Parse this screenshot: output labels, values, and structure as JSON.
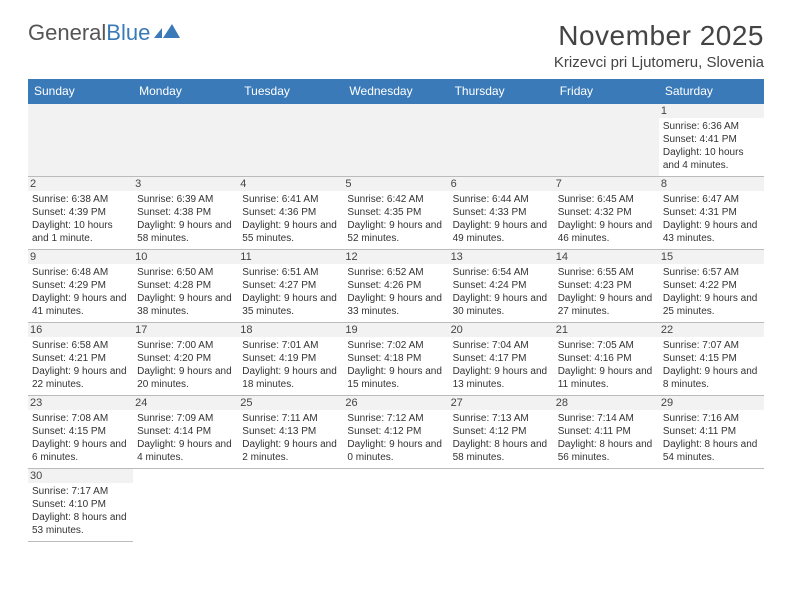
{
  "logo": {
    "text1": "General",
    "text2": "Blue"
  },
  "title": "November 2025",
  "location": "Krizevci pri Ljutomeru, Slovenia",
  "colors": {
    "header_bg": "#3a7ab8",
    "header_text": "#ffffff",
    "border": "#3a7ab8",
    "shade": "#f2f2f2",
    "text": "#333333"
  },
  "weekdays": [
    "Sunday",
    "Monday",
    "Tuesday",
    "Wednesday",
    "Thursday",
    "Friday",
    "Saturday"
  ],
  "weeks": [
    [
      null,
      null,
      null,
      null,
      null,
      null,
      {
        "day": "1",
        "sunrise": "6:36 AM",
        "sunset": "4:41 PM",
        "daylight": "10 hours and 4 minutes."
      }
    ],
    [
      {
        "day": "2",
        "sunrise": "6:38 AM",
        "sunset": "4:39 PM",
        "daylight": "10 hours and 1 minute."
      },
      {
        "day": "3",
        "sunrise": "6:39 AM",
        "sunset": "4:38 PM",
        "daylight": "9 hours and 58 minutes."
      },
      {
        "day": "4",
        "sunrise": "6:41 AM",
        "sunset": "4:36 PM",
        "daylight": "9 hours and 55 minutes."
      },
      {
        "day": "5",
        "sunrise": "6:42 AM",
        "sunset": "4:35 PM",
        "daylight": "9 hours and 52 minutes."
      },
      {
        "day": "6",
        "sunrise": "6:44 AM",
        "sunset": "4:33 PM",
        "daylight": "9 hours and 49 minutes."
      },
      {
        "day": "7",
        "sunrise": "6:45 AM",
        "sunset": "4:32 PM",
        "daylight": "9 hours and 46 minutes."
      },
      {
        "day": "8",
        "sunrise": "6:47 AM",
        "sunset": "4:31 PM",
        "daylight": "9 hours and 43 minutes."
      }
    ],
    [
      {
        "day": "9",
        "sunrise": "6:48 AM",
        "sunset": "4:29 PM",
        "daylight": "9 hours and 41 minutes."
      },
      {
        "day": "10",
        "sunrise": "6:50 AM",
        "sunset": "4:28 PM",
        "daylight": "9 hours and 38 minutes."
      },
      {
        "day": "11",
        "sunrise": "6:51 AM",
        "sunset": "4:27 PM",
        "daylight": "9 hours and 35 minutes."
      },
      {
        "day": "12",
        "sunrise": "6:52 AM",
        "sunset": "4:26 PM",
        "daylight": "9 hours and 33 minutes."
      },
      {
        "day": "13",
        "sunrise": "6:54 AM",
        "sunset": "4:24 PM",
        "daylight": "9 hours and 30 minutes."
      },
      {
        "day": "14",
        "sunrise": "6:55 AM",
        "sunset": "4:23 PM",
        "daylight": "9 hours and 27 minutes."
      },
      {
        "day": "15",
        "sunrise": "6:57 AM",
        "sunset": "4:22 PM",
        "daylight": "9 hours and 25 minutes."
      }
    ],
    [
      {
        "day": "16",
        "sunrise": "6:58 AM",
        "sunset": "4:21 PM",
        "daylight": "9 hours and 22 minutes."
      },
      {
        "day": "17",
        "sunrise": "7:00 AM",
        "sunset": "4:20 PM",
        "daylight": "9 hours and 20 minutes."
      },
      {
        "day": "18",
        "sunrise": "7:01 AM",
        "sunset": "4:19 PM",
        "daylight": "9 hours and 18 minutes."
      },
      {
        "day": "19",
        "sunrise": "7:02 AM",
        "sunset": "4:18 PM",
        "daylight": "9 hours and 15 minutes."
      },
      {
        "day": "20",
        "sunrise": "7:04 AM",
        "sunset": "4:17 PM",
        "daylight": "9 hours and 13 minutes."
      },
      {
        "day": "21",
        "sunrise": "7:05 AM",
        "sunset": "4:16 PM",
        "daylight": "9 hours and 11 minutes."
      },
      {
        "day": "22",
        "sunrise": "7:07 AM",
        "sunset": "4:15 PM",
        "daylight": "9 hours and 8 minutes."
      }
    ],
    [
      {
        "day": "23",
        "sunrise": "7:08 AM",
        "sunset": "4:15 PM",
        "daylight": "9 hours and 6 minutes."
      },
      {
        "day": "24",
        "sunrise": "7:09 AM",
        "sunset": "4:14 PM",
        "daylight": "9 hours and 4 minutes."
      },
      {
        "day": "25",
        "sunrise": "7:11 AM",
        "sunset": "4:13 PM",
        "daylight": "9 hours and 2 minutes."
      },
      {
        "day": "26",
        "sunrise": "7:12 AM",
        "sunset": "4:12 PM",
        "daylight": "9 hours and 0 minutes."
      },
      {
        "day": "27",
        "sunrise": "7:13 AM",
        "sunset": "4:12 PM",
        "daylight": "8 hours and 58 minutes."
      },
      {
        "day": "28",
        "sunrise": "7:14 AM",
        "sunset": "4:11 PM",
        "daylight": "8 hours and 56 minutes."
      },
      {
        "day": "29",
        "sunrise": "7:16 AM",
        "sunset": "4:11 PM",
        "daylight": "8 hours and 54 minutes."
      }
    ],
    [
      {
        "day": "30",
        "sunrise": "7:17 AM",
        "sunset": "4:10 PM",
        "daylight": "8 hours and 53 minutes."
      },
      null,
      null,
      null,
      null,
      null,
      null
    ]
  ],
  "labels": {
    "sunrise": "Sunrise:",
    "sunset": "Sunset:",
    "daylight": "Daylight:"
  }
}
